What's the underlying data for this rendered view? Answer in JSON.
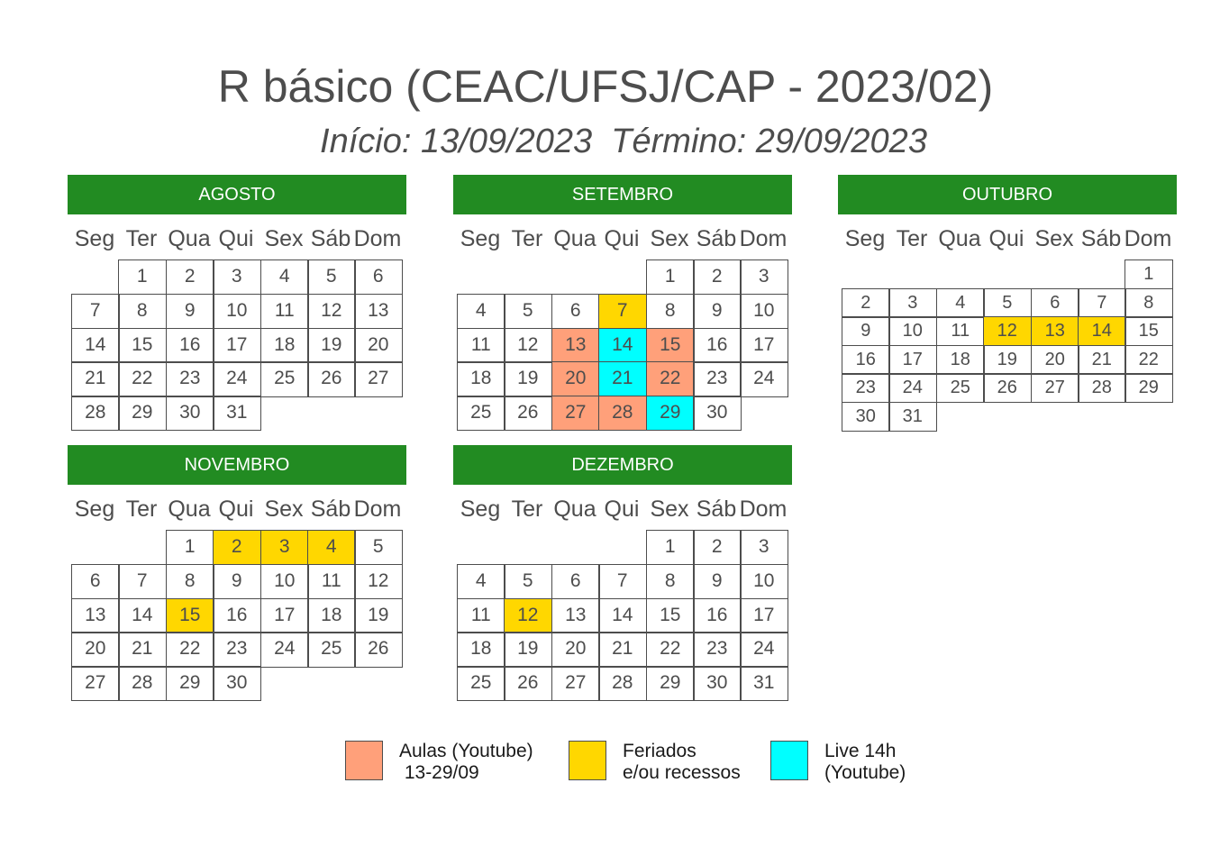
{
  "title": "R básico (CEAC/UFSJ/CAP - 2023/02)",
  "subtitle": "Início: 13/09/2023  Término: 29/09/2023",
  "weekdays": [
    "Seg",
    "Ter",
    "Qua",
    "Qui",
    "Sex",
    "Sáb",
    "Dom"
  ],
  "colors": {
    "header": "#228b22",
    "aulas": "#ffa07a",
    "feriados": "#ffd700",
    "live": "#00ffff",
    "border": "#4d4d4d"
  },
  "legend": [
    {
      "key": "aulas",
      "label": "Aulas (Youtube)\n 13-29/09"
    },
    {
      "key": "feriados",
      "label": "Feriados\ne/ou recessos"
    },
    {
      "key": "live",
      "label": "Live 14h\n(Youtube)"
    }
  ],
  "months": [
    {
      "name": "AGOSTO",
      "start_weekday": 2,
      "days": 31,
      "highlights": {}
    },
    {
      "name": "SETEMBRO",
      "start_weekday": 5,
      "days": 30,
      "highlights": {
        "7": "feriados",
        "13": "aulas",
        "14": "live",
        "15": "aulas",
        "20": "aulas",
        "21": "live",
        "22": "aulas",
        "27": "aulas",
        "28": "aulas",
        "29": "live"
      }
    },
    {
      "name": "OUTUBRO",
      "start_weekday": 7,
      "days": 31,
      "highlights": {
        "12": "feriados",
        "13": "feriados",
        "14": "feriados"
      }
    },
    {
      "name": "NOVEMBRO",
      "start_weekday": 3,
      "days": 30,
      "highlights": {
        "2": "feriados",
        "3": "feriados",
        "4": "feriados",
        "15": "feriados"
      }
    },
    {
      "name": "DEZEMBRO",
      "start_weekday": 5,
      "days": 31,
      "highlights": {
        "12": "feriados"
      }
    }
  ]
}
